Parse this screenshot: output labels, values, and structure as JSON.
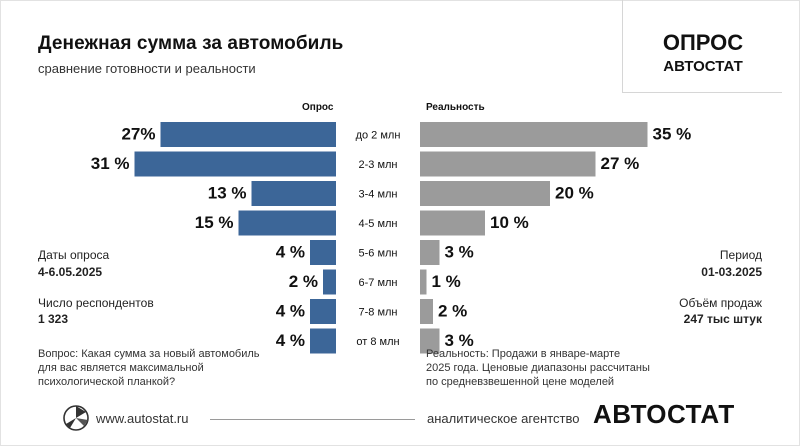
{
  "header": {
    "title": "Денежная сумма за автомобиль",
    "subtitle": "сравнение готовности и реальности"
  },
  "brand": {
    "line1": "ОПРОС",
    "line2": "АВТОСТАТ"
  },
  "left_info": {
    "dates_label": "Даты опроса",
    "dates_value": "4-6.05.2025",
    "respondents_label": "Число респондентов",
    "respondents_value": "1 323"
  },
  "right_info": {
    "period_label": "Период",
    "period_value": "01-03.2025",
    "sales_label": "Объём продаж",
    "sales_value": "247 тыс штук"
  },
  "notes": {
    "left": [
      "Вопрос: Какая сумма за новый автомобиль",
      "для вас является максимальной",
      "психологической планкой?"
    ],
    "right": [
      "Реальность: Продажи в январе-марте",
      "2025 года. Ценовые диапазоны рассчитаны",
      "по средневзвешенной цене моделей"
    ]
  },
  "footer": {
    "url": "www.autostat.ru",
    "agency": "аналитическое агентство",
    "logo": "АВТОСТАТ"
  },
  "colors": {
    "survey": "#3c6698",
    "reality": "#9b9b9b"
  },
  "chart_data": {
    "type": "bar",
    "orientation": "horizontal-butterfly",
    "title": "Денежная сумма за автомобиль",
    "subtitle": "сравнение готовности и реальности",
    "categories": [
      "до 2 млн",
      "2-3 млн",
      "3-4 млн",
      "4-5 млн",
      "5-6 млн",
      "6-7 млн",
      "7-8 млн",
      "от 8 млн"
    ],
    "series": [
      {
        "name": "Опрос",
        "values": [
          27,
          31,
          13,
          15,
          4,
          2,
          4,
          4
        ],
        "labels": [
          "27%",
          "31 %",
          "13 %",
          "15 %",
          "4 %",
          "2 %",
          "4 %",
          "4 %"
        ]
      },
      {
        "name": "Реальность",
        "values": [
          35,
          27,
          20,
          10,
          3,
          1,
          2,
          3
        ],
        "labels": [
          "35 %",
          "27 %",
          "20 %",
          "10 %",
          "3 %",
          "1 %",
          "2 %",
          "3 %"
        ]
      }
    ],
    "unit": "%",
    "legend": "column headers"
  }
}
